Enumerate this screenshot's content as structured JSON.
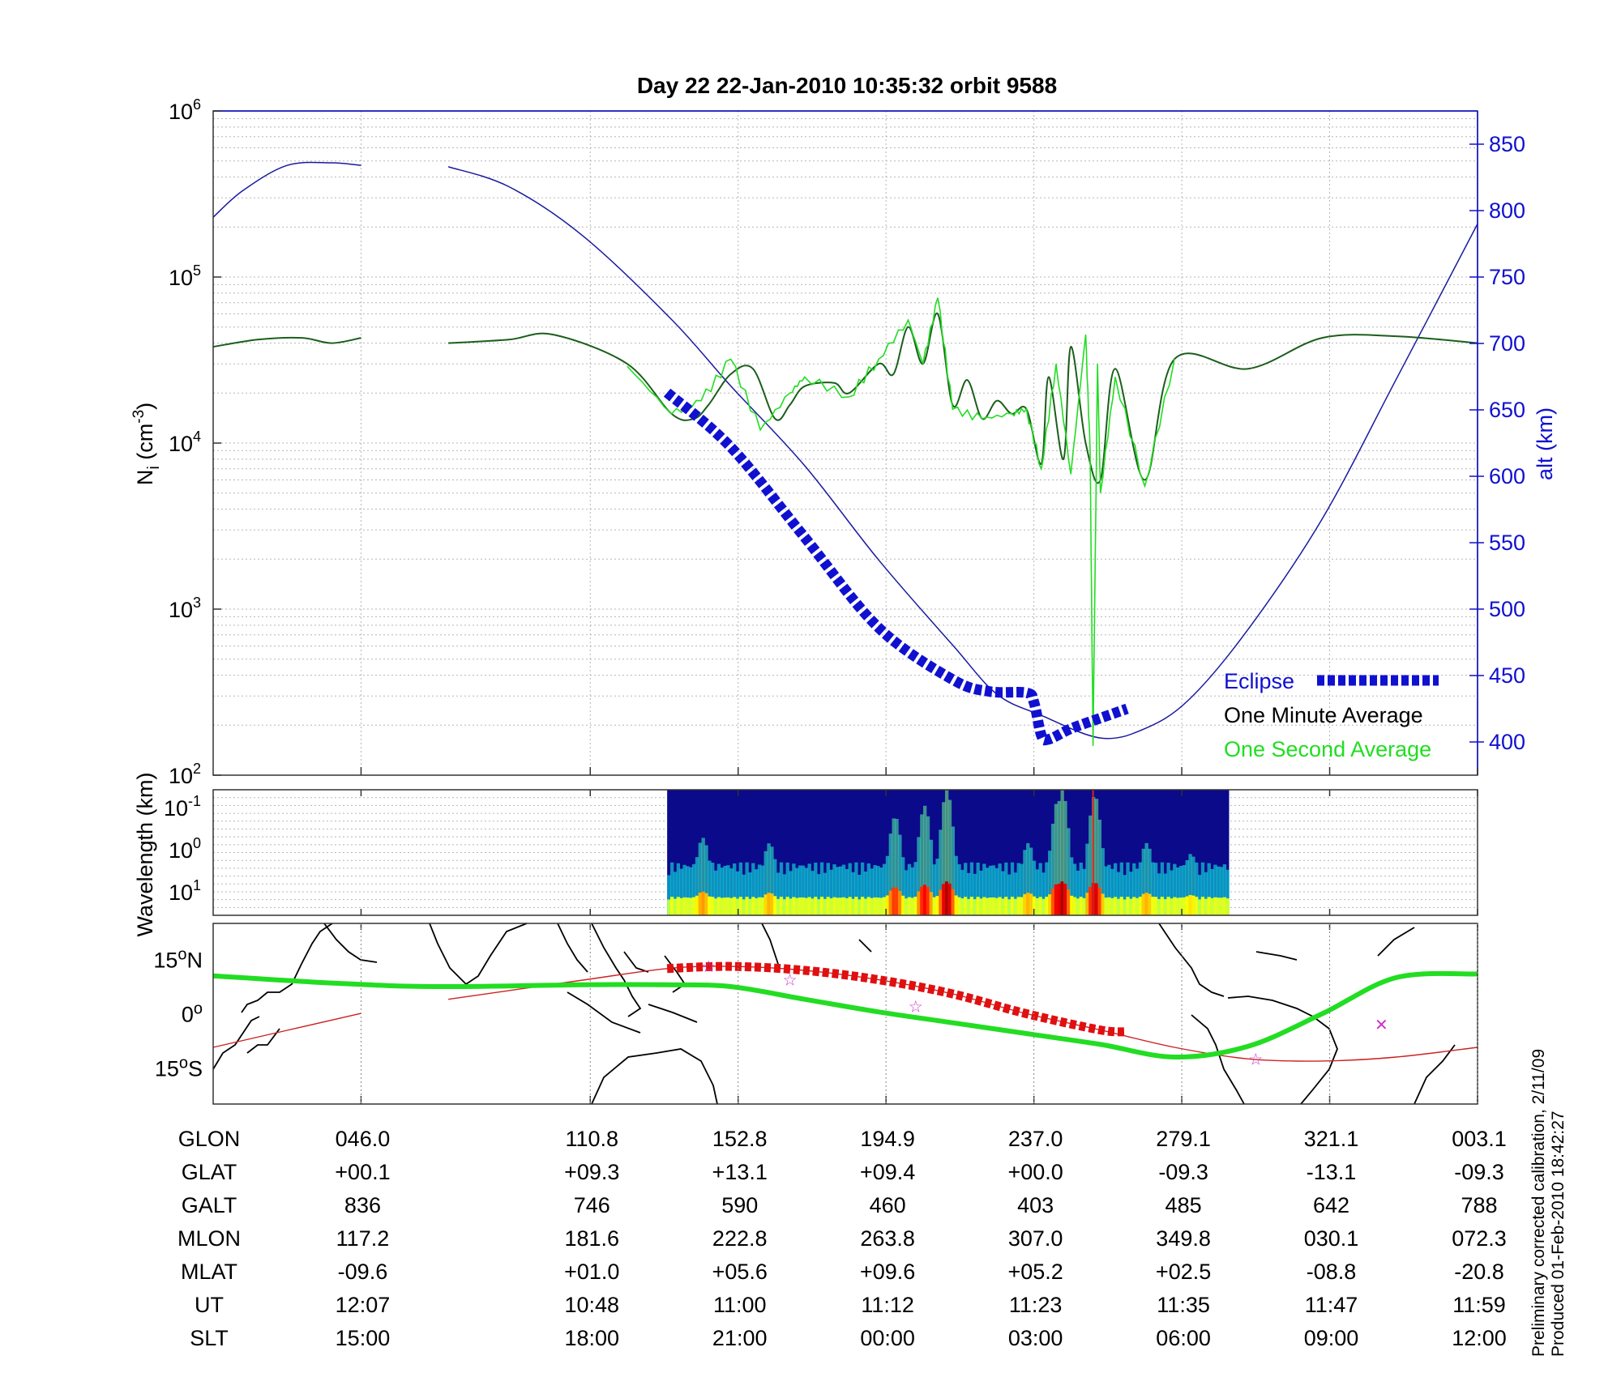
{
  "chart_data": [
    {
      "type": "line",
      "title": "Day 22  22-Jan-2010 10:35:32   orbit 9588",
      "ylabel_left": "N",
      "ylabel_left_sub": "i",
      "ylabel_left_unit": " (cm",
      "ylabel_left_exp": "-3",
      "ylabel_left_close": ")",
      "ylabel_right": "alt (km)",
      "y_scale": "log",
      "ylim": [
        100,
        1000000
      ],
      "y_ticks": [
        {
          "base": "10",
          "exp": "2",
          "value": 100
        },
        {
          "base": "10",
          "exp": "3",
          "value": 1000
        },
        {
          "base": "10",
          "exp": "4",
          "value": 10000
        },
        {
          "base": "10",
          "exp": "5",
          "value": 100000
        },
        {
          "base": "10",
          "exp": "6",
          "value": 1000000
        }
      ],
      "y2lim": [
        375,
        875
      ],
      "y2_ticks": [
        "400",
        "450",
        "500",
        "550",
        "600",
        "650",
        "700",
        "750",
        "800",
        "850"
      ],
      "xlim": [
        0,
        8.55
      ],
      "grid": "on",
      "legend_position": "bottom-right",
      "legend": [
        {
          "name": "Eclipse",
          "color": "#1010d0"
        },
        {
          "name": "One Minute Average",
          "color": "#000000"
        },
        {
          "name": "One Second Average",
          "color": "#22dd22"
        }
      ],
      "series": [
        {
          "name": "Altitude",
          "axis": "right",
          "color": "#1a1aa0",
          "x": [
            0,
            0.2,
            0.5,
            0.8,
            1.0,
            1.59,
            2.0,
            2.5,
            3.1,
            3.5,
            4.0,
            4.5,
            5.0,
            5.3,
            5.6,
            6.0,
            6.3,
            6.6,
            7.0,
            7.5,
            8.0,
            8.55
          ],
          "y": [
            795,
            815,
            834,
            836,
            834,
            833,
            818,
            781,
            718,
            668,
            608,
            537,
            473,
            436,
            420,
            403,
            410,
            432,
            485,
            568,
            673,
            790
          ]
        },
        {
          "name": "One Minute Average",
          "axis": "left",
          "color": "#000000",
          "x": [
            0,
            0.3,
            0.6,
            0.8,
            1.0,
            1.59,
            2.0,
            2.3,
            2.8,
            3.1,
            3.25,
            3.35,
            3.5,
            3.65,
            3.8,
            3.9,
            4.0,
            4.2,
            4.3,
            4.5,
            4.6,
            4.7,
            4.8,
            4.9,
            5.0,
            5.1,
            5.2,
            5.3,
            5.4,
            5.5,
            5.6,
            5.65,
            5.75,
            5.8,
            5.9,
            6.0,
            6.1,
            6.3,
            6.5,
            7.0,
            7.5,
            8.0,
            8.55
          ],
          "y": [
            38000,
            42000,
            43000,
            40000,
            43000,
            40000,
            42000,
            45000,
            30000,
            15000,
            14000,
            17000,
            26000,
            28000,
            14000,
            17000,
            22000,
            23000,
            20000,
            30000,
            26000,
            50000,
            30000,
            60000,
            17000,
            24000,
            14000,
            18000,
            15000,
            16000,
            7500,
            25000,
            8000,
            38000,
            10000,
            6000,
            28000,
            6000,
            32000,
            28000,
            43000,
            44000,
            40000
          ]
        },
        {
          "name": "One Second Average",
          "axis": "left",
          "color": "#22dd22",
          "x": [
            2.8,
            3.1,
            3.3,
            3.5,
            3.7,
            3.9,
            4.0,
            4.3,
            4.5,
            4.7,
            4.8,
            4.9,
            5.0,
            5.2,
            5.4,
            5.5,
            5.6,
            5.7,
            5.8,
            5.9,
            5.93,
            5.95,
            5.98,
            6.0,
            6.1,
            6.3,
            6.5
          ],
          "y": [
            29000,
            15000,
            18000,
            32000,
            12000,
            20000,
            25000,
            19000,
            32000,
            55000,
            30000,
            75000,
            16000,
            14000,
            15000,
            16000,
            7000,
            30000,
            6500,
            45000,
            9000,
            150,
            30000,
            5000,
            25000,
            5500,
            32000
          ]
        },
        {
          "name": "Eclipse",
          "axis": "right",
          "color": "#1010d0",
          "x": [
            3.07,
            3.5,
            4.0,
            4.5,
            5.0,
            5.25,
            5.5,
            5.55,
            5.6,
            5.65,
            5.8,
            6.0,
            6.18
          ],
          "y": [
            663,
            622,
            554,
            486,
            447,
            438,
            437,
            430,
            405,
            402,
            410,
            418,
            425
          ]
        }
      ]
    },
    {
      "type": "heatmap",
      "ylabel": "Wavelength (km)",
      "y_scale": "log",
      "y_ticks": [
        {
          "base": "10",
          "exp": "-1"
        },
        {
          "base": "10",
          "exp": "0"
        },
        {
          "base": "10",
          "exp": "1"
        }
      ],
      "x_extent": [
        3.07,
        6.87
      ],
      "colormap": "jet",
      "background_color": "#0a0a8a",
      "bursts": [
        {
          "x": 3.3,
          "strength": 0.55
        },
        {
          "x": 3.75,
          "strength": 0.5
        },
        {
          "x": 4.6,
          "strength": 0.75
        },
        {
          "x": 4.8,
          "strength": 0.85
        },
        {
          "x": 4.95,
          "strength": 1.0
        },
        {
          "x": 5.5,
          "strength": 0.5
        },
        {
          "x": 5.7,
          "strength": 0.9
        },
        {
          "x": 5.73,
          "strength": 1.0
        },
        {
          "x": 5.95,
          "strength": 0.95
        },
        {
          "x": 6.3,
          "strength": 0.5
        },
        {
          "x": 6.6,
          "strength": 0.4
        }
      ]
    },
    {
      "type": "line",
      "panel": "map",
      "y_ticks": [
        {
          "value": 15,
          "label": "15",
          "hemi": "N"
        },
        {
          "value": 0,
          "label": "0",
          "hemi": ""
        },
        {
          "value": -15,
          "label": "15",
          "hemi": "S"
        }
      ],
      "ylim": [
        -25,
        25
      ],
      "series": [
        {
          "name": "Geographic track",
          "color": "#cc2222",
          "x": [
            0,
            1.0,
            1.59,
            2.5,
            3.07,
            3.5,
            4.0,
            4.5,
            5.0,
            5.5,
            6.0,
            6.5,
            7.0,
            7.5,
            8.0,
            8.55
          ],
          "y": [
            -9.3,
            0.1,
            4,
            9.3,
            12.5,
            13.1,
            12,
            9.4,
            5.5,
            0.0,
            -4.5,
            -9.3,
            -12.5,
            -13.1,
            -12,
            -9.3
          ]
        },
        {
          "name": "Magnetic equator",
          "color": "#22dd22",
          "x": [
            0,
            0.8,
            1.5,
            2.5,
            3.07,
            3.5,
            4.0,
            4.5,
            5.0,
            5.5,
            6.0,
            6.5,
            7.0,
            7.5,
            8.0,
            8.55
          ],
          "y": [
            10.5,
            8.5,
            7.5,
            8,
            8,
            7.5,
            4,
            0.5,
            -2.5,
            -5.5,
            -8.5,
            -12,
            -9,
            0,
            10,
            11
          ]
        },
        {
          "name": "Eclipse track",
          "color": "#e01010",
          "x": [
            3.07,
            3.5,
            4.0,
            4.5,
            5.0,
            5.5,
            6.0,
            6.18
          ],
          "y": [
            12.5,
            13.1,
            12,
            9.4,
            5.5,
            0.0,
            -4.5,
            -5.0
          ]
        }
      ],
      "markers": [
        {
          "x": 3.35,
          "y": 13.1,
          "symbol": "☆"
        },
        {
          "x": 3.9,
          "y": 9.4,
          "symbol": "☆"
        },
        {
          "x": 4.75,
          "y": 2.0,
          "symbol": "☆"
        },
        {
          "x": 7.05,
          "y": -12.5,
          "symbol": "☆"
        },
        {
          "x": 7.9,
          "y": -3.0,
          "symbol": "✕"
        }
      ]
    }
  ],
  "title": "Day 22  22-Jan-2010 10:35:32   orbit 9588",
  "legend": {
    "eclipse": "Eclipse",
    "minute": "One Minute Average",
    "second": "One Second Average"
  },
  "table": {
    "x_positions": [
      1.0,
      2.55,
      3.55,
      4.55,
      5.55,
      6.55,
      7.55,
      8.55
    ],
    "rows": [
      {
        "label": "GLON",
        "values": [
          "046.0",
          "110.8",
          "152.8",
          "194.9",
          "237.0",
          "279.1",
          "321.1",
          "003.1"
        ]
      },
      {
        "label": "GLAT",
        "values": [
          "+00.1",
          "+09.3",
          "+13.1",
          "+09.4",
          "+00.0",
          "-09.3",
          "-13.1",
          "-09.3"
        ]
      },
      {
        "label": "GALT",
        "values": [
          "836",
          "746",
          "590",
          "460",
          "403",
          "485",
          "642",
          "788"
        ]
      },
      {
        "label": "MLON",
        "values": [
          "117.2",
          "181.6",
          "222.8",
          "263.8",
          "307.0",
          "349.8",
          "030.1",
          "072.3"
        ]
      },
      {
        "label": "MLAT",
        "values": [
          "-09.6",
          "+01.0",
          "+05.6",
          "+09.6",
          "+05.2",
          "+02.5",
          "-08.8",
          "-20.8"
        ]
      },
      {
        "label": "UT",
        "values": [
          "12:07",
          "10:48",
          "11:00",
          "11:12",
          "11:23",
          "11:35",
          "11:47",
          "11:59"
        ]
      },
      {
        "label": "SLT",
        "values": [
          "15:00",
          "18:00",
          "21:00",
          "00:00",
          "03:00",
          "06:00",
          "09:00",
          "12:00"
        ]
      }
    ]
  },
  "footer": {
    "line1": "Preliminary corrected calibration, 2/11/09",
    "line2": "Produced 01-Feb-2010 18:42:27"
  },
  "colors": {
    "altitude": "#1a1aa0",
    "axis_blue": "#1010d0",
    "minute": "#000000",
    "second": "#22dd22",
    "eclipse": "#1010d0",
    "track_red": "#cc2222",
    "eclipse_track": "#e01010",
    "map_land": "#000000",
    "star": "#cc33cc"
  }
}
